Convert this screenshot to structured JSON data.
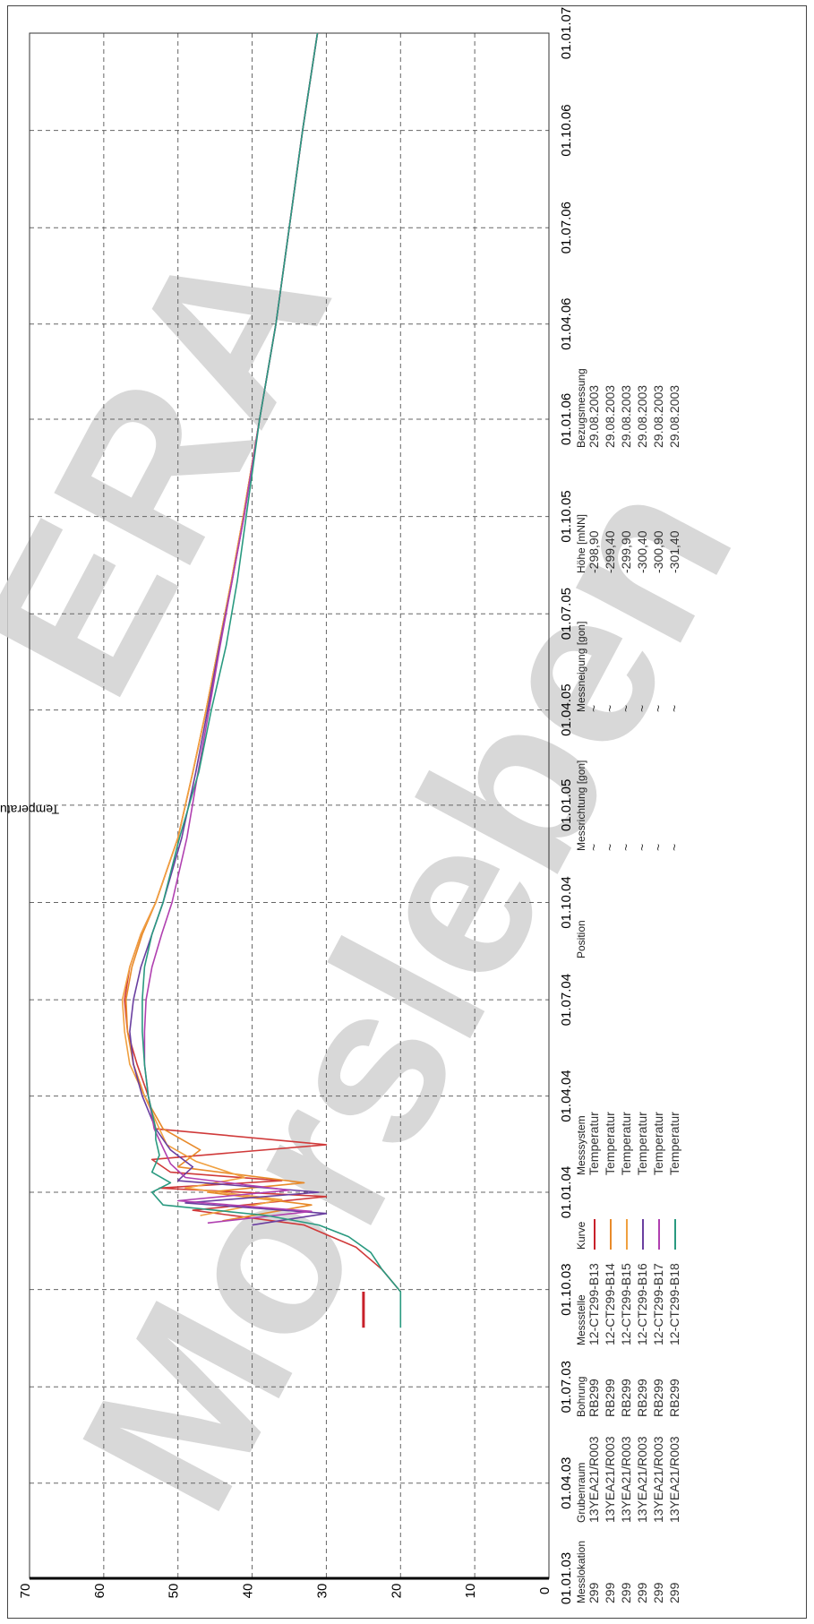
{
  "chart_data": {
    "type": "line",
    "ylabel": "Temperatur [°C]",
    "ylim": [
      0,
      70
    ],
    "yticks": [
      0,
      10,
      20,
      30,
      40,
      50,
      60,
      70
    ],
    "xlim": [
      "2003-01-01",
      "2007-01-01"
    ],
    "xticks": [
      "01.01.03",
      "01.04.03",
      "01.07.03",
      "01.10.03",
      "01.01.04",
      "01.04.04",
      "01.07.04",
      "01.10.04",
      "01.01.05",
      "01.04.05",
      "01.07.05",
      "01.10.05",
      "01.01.06",
      "01.04.06",
      "01.07.06",
      "01.10.06",
      "01.01.07"
    ],
    "grid": true,
    "series": [
      {
        "name": "12-CT299-B13",
        "color": "#c8202a",
        "x": [
          "2003-08-26",
          "2003-09-29"
        ],
        "y": [
          25.0,
          25.0
        ]
      },
      {
        "name": "12-CT299-B13",
        "color": "#d03a3a",
        "x": [
          "2003-09-29",
          "2003-10-20",
          "2003-11-10",
          "2003-12-01",
          "2003-12-15",
          "2003-12-28",
          "2004-01-05",
          "2004-01-12",
          "2004-01-20",
          "2004-02-01",
          "2004-02-15",
          "2004-03-01",
          "2004-04-01",
          "2004-05-01",
          "2004-06-01",
          "2004-07-01",
          "2004-08-01",
          "2004-09-01",
          "2004-10-01",
          "2004-12-01",
          "2005-02-01",
          "2005-04-01",
          "2005-06-01",
          "2005-08-01",
          "2005-10-01",
          "2006-01-01",
          "2006-04-01",
          "2006-07-01",
          "2006-10-01",
          "2007-01-01"
        ],
        "y": [
          20.0,
          22.5,
          26.0,
          33.0,
          48.0,
          30.0,
          52.5,
          36.0,
          51.0,
          53.5,
          30.0,
          53.0,
          54.0,
          55.5,
          56.8,
          57.2,
          56.5,
          55.0,
          53.0,
          50.0,
          48.0,
          46.2,
          44.5,
          42.8,
          41.2,
          39.0,
          36.8,
          35.0,
          33.2,
          31.2
        ]
      },
      {
        "name": "12-CT299-B14",
        "color": "#e88a2a",
        "x": [
          "2003-12-05",
          "2003-12-20",
          "2004-01-01",
          "2004-01-10",
          "2004-01-25",
          "2004-02-10",
          "2004-03-01",
          "2004-04-01",
          "2004-05-01",
          "2004-06-01",
          "2004-07-01",
          "2004-08-01",
          "2004-09-01",
          "2004-10-01",
          "2004-12-01",
          "2005-02-01",
          "2005-04-01",
          "2005-06-01",
          "2005-08-01",
          "2005-10-01",
          "2006-01-01",
          "2006-04-01",
          "2006-07-01",
          "2006-10-01",
          "2007-01-01"
        ],
        "y": [
          44.0,
          32.0,
          46.0,
          33.0,
          50.0,
          47.0,
          52.0,
          54.5,
          56.0,
          56.8,
          57.0,
          56.2,
          54.8,
          53.0,
          50.0,
          48.0,
          46.2,
          44.5,
          42.8,
          41.2,
          39.0,
          36.8,
          35.0,
          33.2,
          31.2
        ]
      },
      {
        "name": "12-CT299-B15",
        "color": "#f0a040",
        "x": [
          "2003-12-10",
          "2003-12-25",
          "2004-01-05",
          "2004-01-15",
          "2004-01-30",
          "2004-02-15",
          "2004-03-01",
          "2004-04-01",
          "2004-05-01",
          "2004-06-01",
          "2004-07-01",
          "2004-08-01",
          "2004-09-01",
          "2004-10-01",
          "2004-12-01",
          "2005-02-01",
          "2005-04-01",
          "2005-06-01",
          "2005-08-01",
          "2005-10-01",
          "2006-01-01",
          "2006-04-01",
          "2006-07-01",
          "2006-10-01",
          "2007-01-01"
        ],
        "y": [
          47.0,
          36.0,
          49.0,
          41.0,
          47.5,
          51.5,
          52.5,
          54.5,
          56.5,
          57.2,
          57.5,
          56.5,
          55.0,
          53.0,
          50.0,
          48.0,
          46.2,
          44.5,
          42.8,
          41.2,
          39.0,
          36.8,
          35.0,
          33.2,
          31.2
        ]
      },
      {
        "name": "12-CT299-B16",
        "color": "#6a3fa0",
        "x": [
          "2003-12-01",
          "2003-12-12",
          "2003-12-22",
          "2004-01-01",
          "2004-01-12",
          "2004-01-25",
          "2004-02-10",
          "2004-03-01",
          "2004-04-01",
          "2004-05-01",
          "2004-06-01",
          "2004-07-01",
          "2004-08-01",
          "2004-09-01",
          "2004-10-01",
          "2004-12-01",
          "2005-02-01",
          "2005-04-01",
          "2005-06-01",
          "2005-08-01",
          "2005-10-01",
          "2006-01-01",
          "2006-04-01",
          "2006-07-01",
          "2006-10-01",
          "2007-01-01"
        ],
        "y": [
          40.0,
          30.0,
          49.0,
          31.0,
          50.0,
          48.0,
          51.0,
          53.0,
          54.8,
          56.0,
          56.5,
          56.0,
          55.0,
          53.5,
          52.0,
          49.5,
          47.6,
          46.0,
          44.4,
          42.7,
          41.1,
          39.0,
          36.8,
          35.0,
          33.2,
          31.2
        ]
      },
      {
        "name": "12-CT299-B17",
        "color": "#b040b0",
        "x": [
          "2003-12-03",
          "2003-12-14",
          "2003-12-24",
          "2004-01-03",
          "2004-01-15",
          "2004-01-28",
          "2004-02-12",
          "2004-03-01",
          "2004-04-01",
          "2004-05-01",
          "2004-06-01",
          "2004-07-01",
          "2004-08-01",
          "2004-09-01",
          "2004-10-01",
          "2004-12-01",
          "2005-02-01",
          "2005-04-01",
          "2005-06-01",
          "2005-08-01",
          "2005-10-01",
          "2006-01-01",
          "2006-04-01",
          "2006-07-01",
          "2006-10-01",
          "2007-01-01"
        ],
        "y": [
          46.0,
          32.0,
          50.0,
          35.0,
          49.0,
          51.0,
          52.0,
          53.2,
          54.0,
          54.5,
          54.5,
          54.3,
          53.5,
          52.2,
          50.8,
          48.8,
          47.3,
          45.8,
          44.3,
          42.7,
          41.1,
          39.0,
          36.8,
          35.0,
          33.2,
          31.2
        ]
      },
      {
        "name": "12-CT299-B18",
        "color": "#2a9a80",
        "x": [
          "2003-08-26",
          "2003-09-29",
          "2003-10-20",
          "2003-11-05",
          "2003-11-20",
          "2003-12-01",
          "2003-12-10",
          "2003-12-20",
          "2004-01-01",
          "2004-01-10",
          "2004-01-20",
          "2004-02-05",
          "2004-02-20",
          "2004-03-01",
          "2004-04-01",
          "2004-05-01",
          "2004-06-01",
          "2004-07-01",
          "2004-08-01",
          "2004-09-01",
          "2004-10-01",
          "2004-12-01",
          "2005-02-01",
          "2005-04-01",
          "2005-06-01",
          "2005-08-01",
          "2005-10-01",
          "2006-01-01",
          "2006-04-01",
          "2006-07-01",
          "2006-10-01",
          "2007-01-01"
        ],
        "y": [
          20.0,
          20.0,
          22.5,
          24.0,
          27.0,
          31.0,
          38.0,
          52.0,
          53.5,
          51.0,
          53.5,
          52.5,
          53.0,
          53.0,
          54.0,
          54.5,
          54.8,
          54.8,
          54.5,
          53.5,
          52.0,
          49.8,
          47.2,
          45.5,
          43.5,
          42.0,
          40.8,
          39.0,
          36.8,
          35.0,
          33.2,
          31.2
        ]
      }
    ]
  },
  "legend": {
    "headers": {
      "messlokation": "Messlokation",
      "grubenraum": "Grubenraum",
      "bohrung": "Bohrung",
      "messstelle": "Messstelle",
      "kurve": "Kurve",
      "messsystem": "Messsystem",
      "position": "Position",
      "messrichtung": "Messrichtung [gon]",
      "messneigung": "Messneigung [gon]",
      "hoehe": "Höhe [mNN]",
      "bezugsmessung": "Bezugsmessung"
    },
    "rows": [
      {
        "messlokation": "299",
        "grubenraum": "13YEA21/R003",
        "bohrung": "RB299",
        "messstelle": "12-CT299-B13",
        "color": "#c8202a",
        "messsystem": "Temperatur",
        "messrichtung": "~",
        "messneigung": "~",
        "hoehe": "-298,90",
        "bezugsmessung": "29.08.2003"
      },
      {
        "messlokation": "299",
        "grubenraum": "13YEA21/R003",
        "bohrung": "RB299",
        "messstelle": "12-CT299-B14",
        "color": "#e88a2a",
        "messsystem": "Temperatur",
        "messrichtung": "~",
        "messneigung": "~",
        "hoehe": "-299,40",
        "bezugsmessung": "29.08.2003"
      },
      {
        "messlokation": "299",
        "grubenraum": "13YEA21/R003",
        "bohrung": "RB299",
        "messstelle": "12-CT299-B15",
        "color": "#f0a040",
        "messsystem": "Temperatur",
        "messrichtung": "~",
        "messneigung": "~",
        "hoehe": "-299,90",
        "bezugsmessung": "29.08.2003"
      },
      {
        "messlokation": "299",
        "grubenraum": "13YEA21/R003",
        "bohrung": "RB299",
        "messstelle": "12-CT299-B16",
        "color": "#6a3fa0",
        "messsystem": "Temperatur",
        "messrichtung": "~",
        "messneigung": "~",
        "hoehe": "-300,40",
        "bezugsmessung": "29.08.2003"
      },
      {
        "messlokation": "299",
        "grubenraum": "13YEA21/R003",
        "bohrung": "RB299",
        "messstelle": "12-CT299-B17",
        "color": "#b040b0",
        "messsystem": "Temperatur",
        "messrichtung": "~",
        "messneigung": "~",
        "hoehe": "-300,90",
        "bezugsmessung": "29.08.2003"
      },
      {
        "messlokation": "299",
        "grubenraum": "13YEA21/R003",
        "bohrung": "RB299",
        "messstelle": "12-CT299-B18",
        "color": "#2a9a80",
        "messsystem": "Temperatur",
        "messrichtung": "~",
        "messneigung": "~",
        "hoehe": "-301,40",
        "bezugsmessung": "29.08.2003"
      }
    ]
  },
  "watermark": {
    "line1": "ERA",
    "line2": "Morsleben",
    "color": "#cccccc"
  }
}
